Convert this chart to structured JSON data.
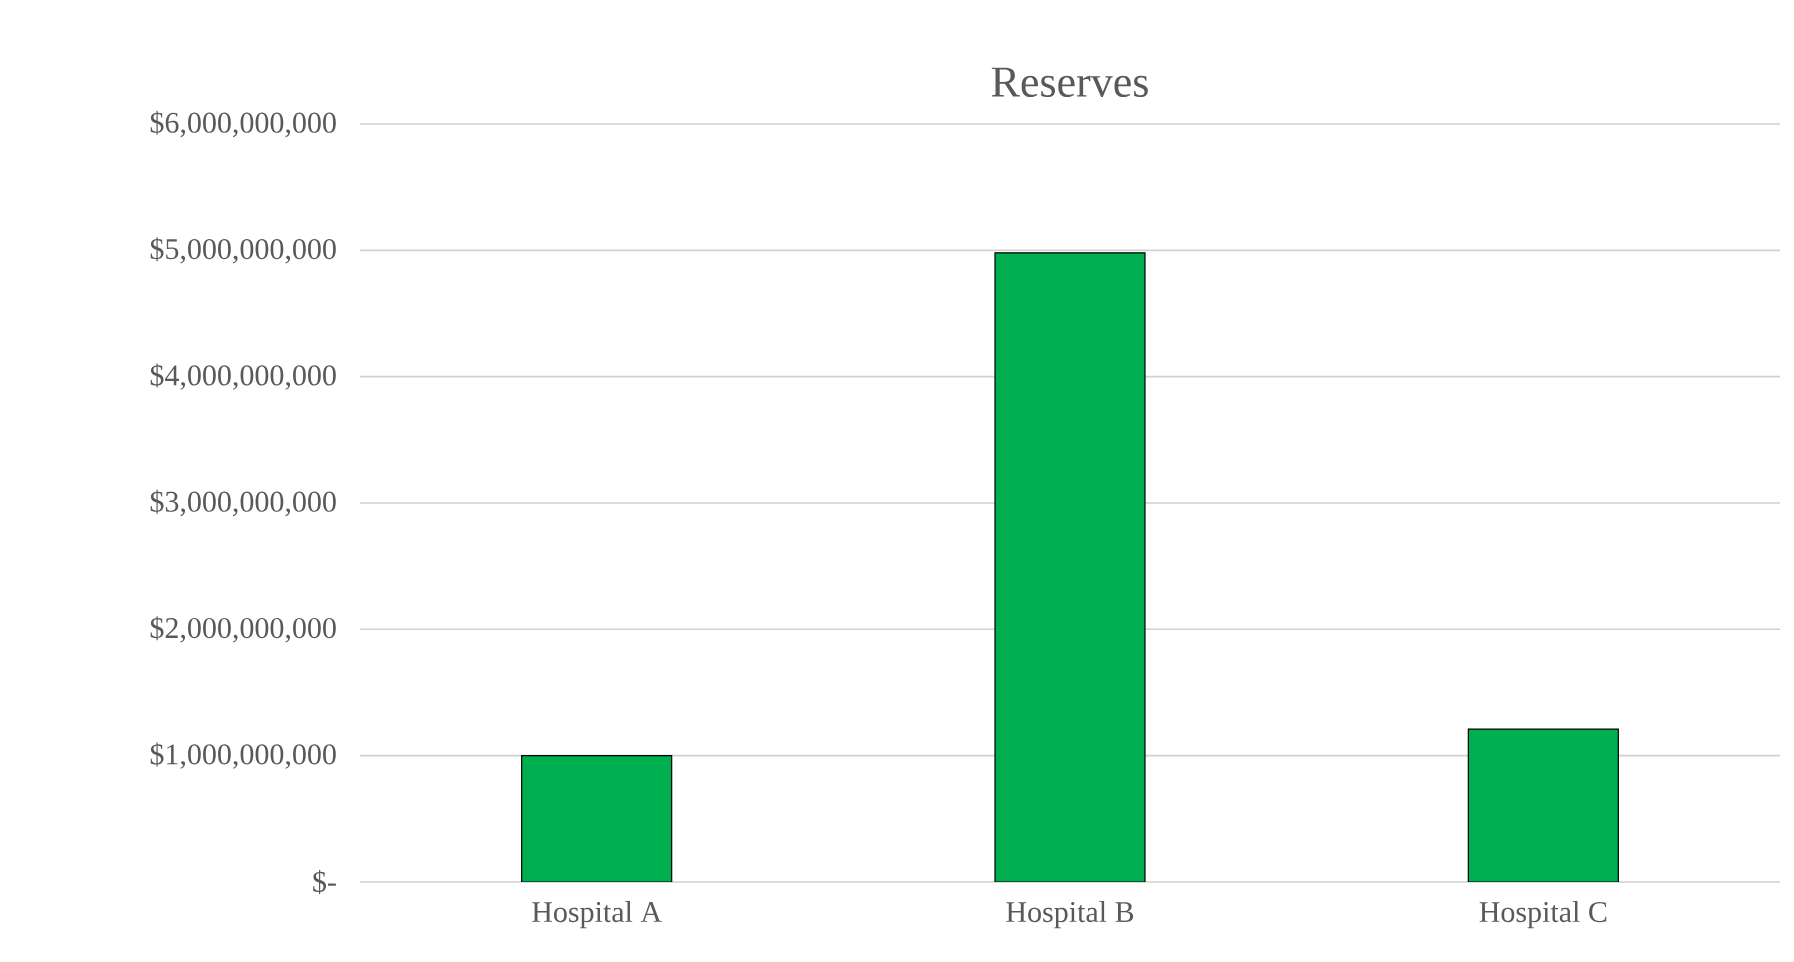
{
  "chart_data": {
    "type": "bar",
    "title": "Reserves",
    "categories": [
      "Hospital A",
      "Hospital B",
      "Hospital C"
    ],
    "values": [
      1000000000,
      4980000000,
      1210000000
    ],
    "color": "#00b050",
    "ylim": [
      0,
      6000000000
    ],
    "yticks": [
      {
        "value": 0,
        "label": "$-"
      },
      {
        "value": 1000000000,
        "label": "$1,000,000,000"
      },
      {
        "value": 2000000000,
        "label": "$2,000,000,000"
      },
      {
        "value": 3000000000,
        "label": "$3,000,000,000"
      },
      {
        "value": 4000000000,
        "label": "$4,000,000,000"
      },
      {
        "value": 5000000000,
        "label": "$5,000,000,000"
      },
      {
        "value": 6000000000,
        "label": "$6,000,000,000"
      }
    ],
    "grid": "y"
  }
}
